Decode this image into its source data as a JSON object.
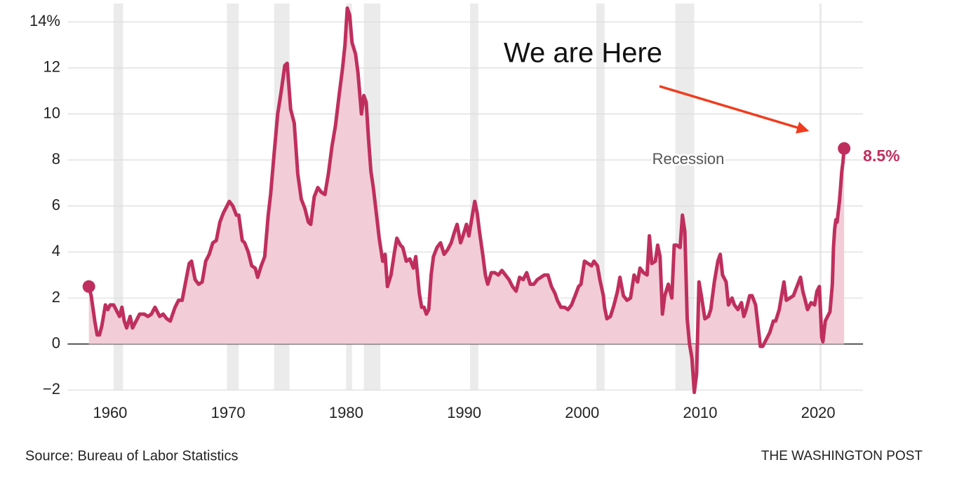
{
  "chart_data": {
    "type": "area-line",
    "source": "Source: Bureau of Labor Statistics",
    "credit": "THE WASHINGTON POST",
    "annotation": "We are Here",
    "recession_label": "Recession",
    "last_value_label": "8.5%",
    "color": "#bf2f5e",
    "fill": "#f2cdd7",
    "recessions": [
      [
        1960.3,
        1961.1
      ],
      [
        1969.9,
        1970.9
      ],
      [
        1973.9,
        1975.2
      ],
      [
        1980.0,
        1980.5
      ],
      [
        1981.5,
        1982.9
      ],
      [
        1990.5,
        1991.2
      ],
      [
        2001.2,
        2001.9
      ],
      [
        2007.9,
        2009.5
      ],
      [
        2020.1,
        2020.3
      ]
    ],
    "x": [
      1958.2,
      1958.4,
      1958.7,
      1958.9,
      1959.1,
      1959.3,
      1959.6,
      1959.8,
      1960.0,
      1960.3,
      1960.6,
      1960.8,
      1961.0,
      1961.2,
      1961.4,
      1961.7,
      1961.9,
      1962.2,
      1962.5,
      1962.9,
      1963.2,
      1963.5,
      1963.8,
      1964.2,
      1964.5,
      1964.8,
      1965.1,
      1965.5,
      1965.8,
      1966.1,
      1966.4,
      1966.7,
      1966.9,
      1967.2,
      1967.5,
      1967.8,
      1968.1,
      1968.4,
      1968.7,
      1969.0,
      1969.3,
      1969.6,
      1969.9,
      1970.1,
      1970.4,
      1970.7,
      1970.9,
      1971.2,
      1971.4,
      1971.7,
      1972.0,
      1972.3,
      1972.5,
      1972.8,
      1973.1,
      1973.4,
      1973.6,
      1973.9,
      1974.2,
      1974.5,
      1974.8,
      1975.0,
      1975.3,
      1975.6,
      1975.9,
      1976.2,
      1976.5,
      1976.8,
      1977.0,
      1977.3,
      1977.6,
      1977.9,
      1978.2,
      1978.5,
      1978.8,
      1979.1,
      1979.4,
      1979.7,
      1979.9,
      1980.1,
      1980.3,
      1980.5,
      1980.8,
      1981.0,
      1981.3,
      1981.5,
      1981.7,
      1981.9,
      1982.1,
      1982.3,
      1982.6,
      1982.8,
      1983.1,
      1983.3,
      1983.5,
      1983.8,
      1984.1,
      1984.3,
      1984.6,
      1984.8,
      1985.1,
      1985.4,
      1985.7,
      1985.9,
      1986.2,
      1986.4,
      1986.6,
      1986.8,
      1987.0,
      1987.2,
      1987.4,
      1987.7,
      1988.0,
      1988.3,
      1988.6,
      1988.9,
      1989.2,
      1989.4,
      1989.7,
      1989.9,
      1990.2,
      1990.4,
      1990.7,
      1990.9,
      1991.1,
      1991.3,
      1991.6,
      1991.8,
      1992.0,
      1992.3,
      1992.6,
      1992.9,
      1993.2,
      1993.5,
      1993.8,
      1994.1,
      1994.4,
      1994.7,
      1995.0,
      1995.3,
      1995.6,
      1995.9,
      1996.2,
      1996.5,
      1996.8,
      1997.1,
      1997.4,
      1997.7,
      1997.9,
      1998.2,
      1998.5,
      1998.8,
      1999.1,
      1999.4,
      1999.7,
      1999.9,
      2000.2,
      2000.5,
      2000.8,
      2001.0,
      2001.3,
      2001.5,
      2001.8,
      2001.9,
      2002.1,
      2002.4,
      2002.7,
      2003.0,
      2003.2,
      2003.5,
      2003.8,
      2004.1,
      2004.4,
      2004.7,
      2004.9,
      2005.2,
      2005.5,
      2005.7,
      2005.9,
      2006.2,
      2006.4,
      2006.6,
      2006.8,
      2007.0,
      2007.3,
      2007.6,
      2007.8,
      2008.0,
      2008.3,
      2008.5,
      2008.7,
      2008.9,
      2009.1,
      2009.3,
      2009.5,
      2009.7,
      2009.9,
      2010.1,
      2010.4,
      2010.7,
      2010.9,
      2011.2,
      2011.5,
      2011.7,
      2011.9,
      2012.2,
      2012.4,
      2012.7,
      2012.9,
      2013.2,
      2013.5,
      2013.7,
      2013.9,
      2014.2,
      2014.4,
      2014.7,
      2014.9,
      2015.1,
      2015.3,
      2015.6,
      2015.9,
      2016.2,
      2016.4,
      2016.7,
      2016.9,
      2017.1,
      2017.3,
      2017.6,
      2017.9,
      2018.2,
      2018.5,
      2018.7,
      2018.9,
      2019.1,
      2019.4,
      2019.7,
      2019.9,
      2020.1,
      2020.3,
      2020.4,
      2020.6,
      2020.8,
      2021.0,
      2021.2,
      2021.3,
      2021.4,
      2021.5,
      2021.6,
      2021.8,
      2021.9,
      2022.0,
      2022.1,
      2022.2
    ],
    "values": [
      2.5,
      2.1,
      1.0,
      0.4,
      0.4,
      0.8,
      1.7,
      1.5,
      1.7,
      1.7,
      1.4,
      1.2,
      1.6,
      1.0,
      0.7,
      1.2,
      0.7,
      1.0,
      1.3,
      1.3,
      1.2,
      1.3,
      1.6,
      1.2,
      1.3,
      1.1,
      1.0,
      1.6,
      1.9,
      1.9,
      2.7,
      3.5,
      3.6,
      2.8,
      2.6,
      2.7,
      3.6,
      3.9,
      4.4,
      4.5,
      5.3,
      5.7,
      6.0,
      6.2,
      6.0,
      5.6,
      5.6,
      4.5,
      4.4,
      4.0,
      3.4,
      3.3,
      2.9,
      3.4,
      3.8,
      5.6,
      6.5,
      8.3,
      10.0,
      11.0,
      12.1,
      12.2,
      10.2,
      9.6,
      7.4,
      6.3,
      5.9,
      5.3,
      5.2,
      6.4,
      6.8,
      6.6,
      6.5,
      7.4,
      8.6,
      9.5,
      10.8,
      12.0,
      13.0,
      14.6,
      14.3,
      13.1,
      12.6,
      11.8,
      10.0,
      10.8,
      10.5,
      8.9,
      7.5,
      6.8,
      5.5,
      4.6,
      3.6,
      3.9,
      2.5,
      3.0,
      4.0,
      4.6,
      4.3,
      4.2,
      3.6,
      3.7,
      3.3,
      3.8,
      2.2,
      1.6,
      1.6,
      1.3,
      1.5,
      3.0,
      3.8,
      4.2,
      4.4,
      3.9,
      4.1,
      4.4,
      4.9,
      5.2,
      4.4,
      4.7,
      5.2,
      4.7,
      5.6,
      6.2,
      5.7,
      4.9,
      3.8,
      3.0,
      2.6,
      3.1,
      3.1,
      3.0,
      3.2,
      3.0,
      2.8,
      2.5,
      2.3,
      2.9,
      2.8,
      3.1,
      2.6,
      2.6,
      2.8,
      2.9,
      3.0,
      3.0,
      2.5,
      2.2,
      1.9,
      1.6,
      1.6,
      1.5,
      1.7,
      2.1,
      2.5,
      2.6,
      3.6,
      3.5,
      3.4,
      3.6,
      3.4,
      2.8,
      2.1,
      1.6,
      1.1,
      1.2,
      1.7,
      2.3,
      2.9,
      2.1,
      1.9,
      2.0,
      3.0,
      2.7,
      3.3,
      3.1,
      3.0,
      4.7,
      3.5,
      3.6,
      4.3,
      3.8,
      1.3,
      2.1,
      2.6,
      2.0,
      4.3,
      4.3,
      4.2,
      5.6,
      4.9,
      1.1,
      0.0,
      -0.6,
      -2.1,
      -1.3,
      2.7,
      2.1,
      1.1,
      1.2,
      1.5,
      2.7,
      3.6,
      3.9,
      3.0,
      2.7,
      1.7,
      2.0,
      1.7,
      1.5,
      1.8,
      1.2,
      1.5,
      2.1,
      2.1,
      1.7,
      0.8,
      -0.1,
      -0.1,
      0.2,
      0.5,
      1.0,
      1.0,
      1.5,
      2.1,
      2.7,
      1.9,
      2.0,
      2.1,
      2.5,
      2.9,
      2.3,
      1.9,
      1.5,
      1.8,
      1.7,
      2.3,
      2.5,
      0.3,
      0.1,
      1.0,
      1.2,
      1.4,
      2.6,
      4.2,
      5.0,
      5.4,
      5.3,
      6.2,
      6.8,
      7.5,
      7.9,
      8.5
    ],
    "xlim": [
      1956.4,
      2023.8
    ],
    "ylim": [
      -2.6,
      14.8
    ],
    "xticks": [
      1960,
      1970,
      1980,
      1990,
      2000,
      2010,
      2020
    ],
    "yticks": [
      {
        "value": -2,
        "label": "−2"
      },
      0,
      2,
      4,
      6,
      8,
      10,
      12,
      {
        "value": 14,
        "label": "14%"
      }
    ],
    "grid": true
  }
}
